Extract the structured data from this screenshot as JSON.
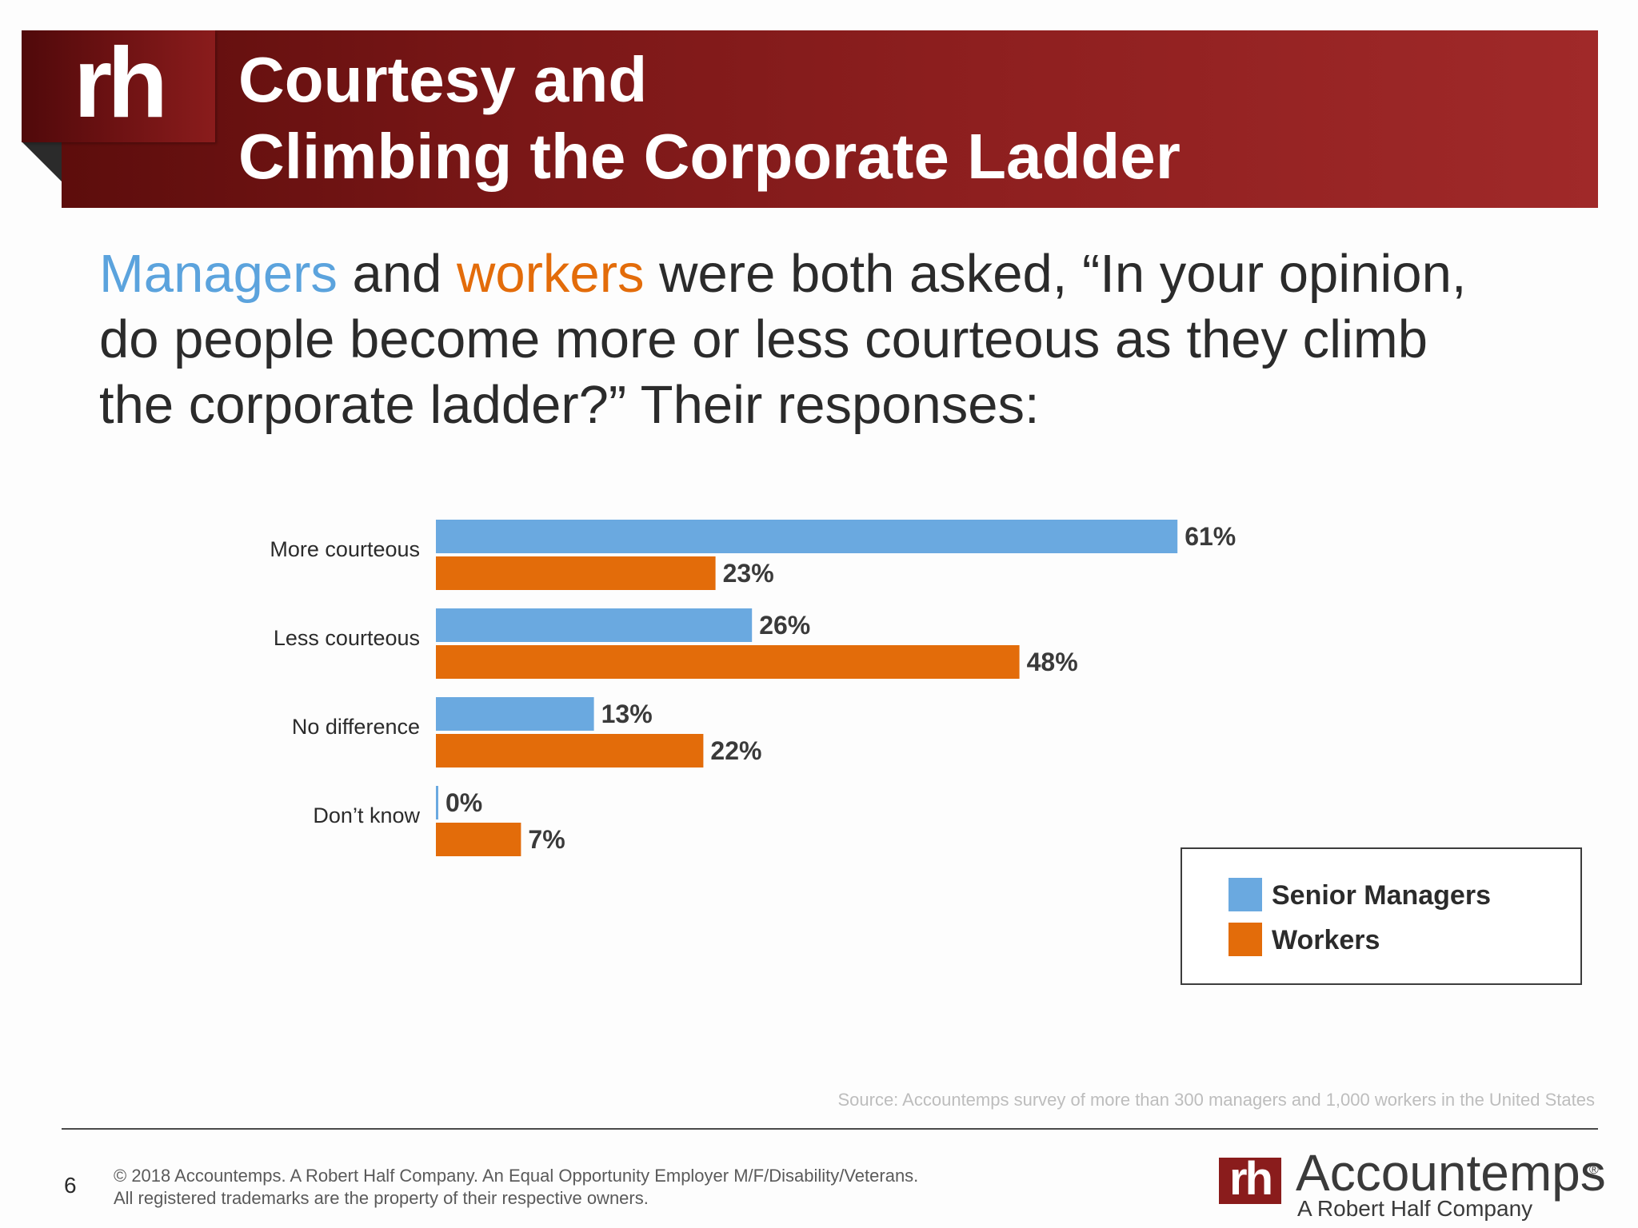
{
  "header": {
    "logo_text": "rh",
    "title_line1": "Courtesy and",
    "title_line2": "Climbing the Corporate Ladder"
  },
  "question": {
    "managers": "Managers",
    "and": " and ",
    "workers": "workers",
    "rest_line1": " were both asked, “In your opinion,",
    "line2": "do people become more or less courteous as they climb",
    "line3": "the corporate ladder?” Their responses:"
  },
  "colors": {
    "senior_managers": "#6aa9e0",
    "workers": "#e36c0a",
    "banner": "#8e1f1f"
  },
  "chart_data": {
    "type": "bar",
    "orientation": "horizontal",
    "categories": [
      "More courteous",
      "Less courteous",
      "No difference",
      "Don’t know"
    ],
    "series": [
      {
        "name": "Senior Managers",
        "values": [
          61,
          26,
          13,
          0
        ],
        "labels": [
          "61%",
          "26%",
          "13%",
          "0%"
        ]
      },
      {
        "name": "Workers",
        "values": [
          23,
          48,
          22,
          7
        ],
        "labels": [
          "23%",
          "48%",
          "22%",
          "7%"
        ]
      }
    ],
    "title": "",
    "xlabel": "",
    "ylabel": "",
    "value_unit": "%",
    "grid": false,
    "legend": "bottom-right"
  },
  "legend": {
    "items": [
      "Senior Managers",
      "Workers"
    ]
  },
  "footer": {
    "source": "Source: Accountemps survey of more than 300 managers and 1,000 workers in the United States",
    "page_number": "6",
    "copyright_line1": "© 2018 Accountemps. A Robert Half Company. An Equal Opportunity Employer M/F/Disability/Veterans.",
    "copyright_line2": "All registered trademarks are the property of their respective owners.",
    "brand_mark": "rh",
    "brand_name": "Accountemps",
    "brand_registered": "®",
    "brand_tagline": "A Robert Half Company"
  }
}
